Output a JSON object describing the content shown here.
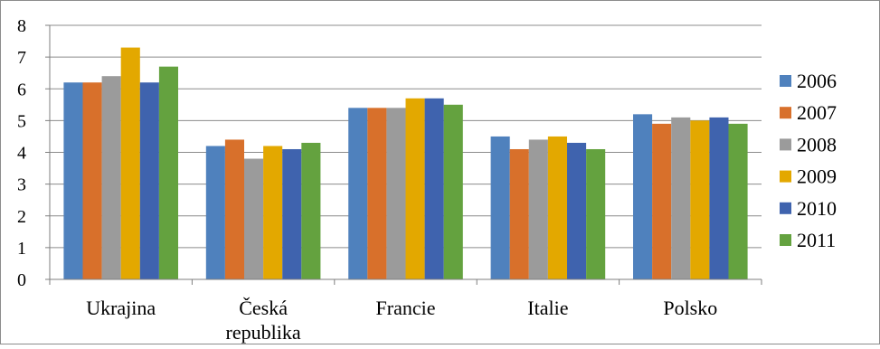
{
  "chart_data": {
    "type": "bar",
    "categories": [
      "Ukrajina",
      "Česká republika",
      "Francie",
      "Italie",
      "Polsko"
    ],
    "category_label_lines": [
      [
        "Ukrajina"
      ],
      [
        "Česká",
        "republika"
      ],
      [
        "Francie"
      ],
      [
        "Italie"
      ],
      [
        "Polsko"
      ]
    ],
    "series": [
      {
        "name": "2006",
        "color": "#4F81BD",
        "values": [
          6.2,
          4.2,
          5.4,
          4.5,
          5.2
        ]
      },
      {
        "name": "2007",
        "color": "#D8702B",
        "values": [
          6.2,
          4.4,
          5.4,
          4.1,
          4.9
        ]
      },
      {
        "name": "2008",
        "color": "#9B9B9B",
        "values": [
          6.4,
          3.8,
          5.4,
          4.4,
          5.1
        ]
      },
      {
        "name": "2009",
        "color": "#E3A800",
        "values": [
          7.3,
          4.2,
          5.7,
          4.5,
          5.0
        ]
      },
      {
        "name": "2010",
        "color": "#3F63AE",
        "values": [
          6.2,
          4.1,
          5.7,
          4.3,
          5.1
        ]
      },
      {
        "name": "2011",
        "color": "#64A23F",
        "values": [
          6.7,
          4.3,
          5.5,
          4.1,
          4.9
        ]
      }
    ],
    "yticks": [
      0,
      1,
      2,
      3,
      4,
      5,
      6,
      7,
      8
    ],
    "ylim": [
      0,
      8
    ],
    "title": "",
    "xlabel": "",
    "ylabel": "",
    "grid": true,
    "legend_position": "right"
  }
}
